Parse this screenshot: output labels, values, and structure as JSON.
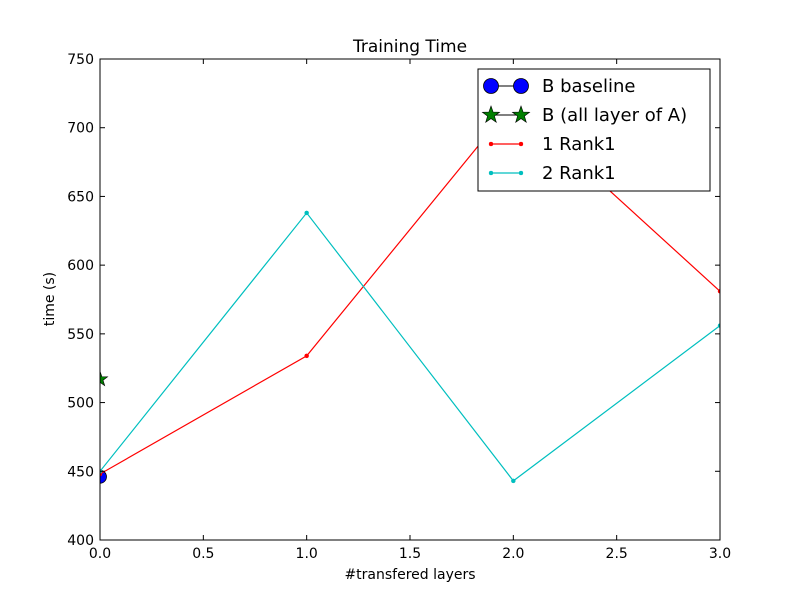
{
  "chart_data": {
    "type": "line",
    "title": "Training Time",
    "xlabel": "#transfered layers",
    "ylabel": "time (s)",
    "xlim": [
      0,
      3
    ],
    "ylim": [
      400,
      750
    ],
    "xticks": [
      0.0,
      0.5,
      1.0,
      1.5,
      2.0,
      2.5,
      3.0
    ],
    "xtick_labels": [
      "0.0",
      "0.5",
      "1.0",
      "1.5",
      "2.0",
      "2.5",
      "3.0"
    ],
    "yticks": [
      400,
      450,
      500,
      550,
      600,
      650,
      700,
      750
    ],
    "ytick_labels": [
      "400",
      "450",
      "500",
      "550",
      "600",
      "650",
      "700",
      "750"
    ],
    "grid": false,
    "legend_position": "top-right",
    "series": [
      {
        "name": "B baseline",
        "color": "#0000ff",
        "marker": "circle",
        "x": [
          0
        ],
        "y": [
          446
        ]
      },
      {
        "name": "B (all layer of A)",
        "color": "#007f00",
        "marker": "star",
        "x": [
          0
        ],
        "y": [
          517
        ]
      },
      {
        "name": "1 Rank1",
        "color": "#ff0000",
        "marker": "dot",
        "x": [
          0,
          1,
          2,
          3
        ],
        "y": [
          448,
          534,
          718,
          581
        ]
      },
      {
        "name": "2 Rank1",
        "color": "#00bfbf",
        "marker": "dot",
        "x": [
          0,
          1,
          2,
          3
        ],
        "y": [
          450,
          638,
          443,
          556
        ]
      }
    ]
  }
}
